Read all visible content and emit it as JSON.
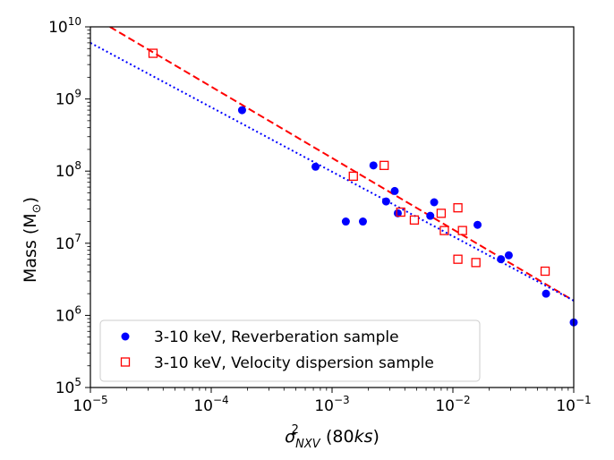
{
  "chart_data": {
    "type": "scatter",
    "xscale": "log",
    "yscale": "log",
    "xlim": [
      1e-05,
      0.1
    ],
    "ylim": [
      100000.0,
      10000000000.0
    ],
    "xlabel": {
      "symbol": "σ",
      "sup": "2",
      "sub": "NXV",
      "rest_open": " (80",
      "rest_italic": "ks",
      "rest_close": ")"
    },
    "ylabel": {
      "text": "Mass (M",
      "symbol": "⊙",
      "close": ")"
    },
    "x_ticks": [
      {
        "value": 1e-05,
        "base": "10",
        "exp": "−5"
      },
      {
        "value": 0.0001,
        "base": "10",
        "exp": "−4"
      },
      {
        "value": 0.001,
        "base": "10",
        "exp": "−3"
      },
      {
        "value": 0.01,
        "base": "10",
        "exp": "−2"
      },
      {
        "value": 0.1,
        "base": "10",
        "exp": "−1"
      }
    ],
    "y_ticks": [
      {
        "value": 100000.0,
        "base": "10",
        "exp": "5"
      },
      {
        "value": 1000000.0,
        "base": "10",
        "exp": "6"
      },
      {
        "value": 10000000.0,
        "base": "10",
        "exp": "7"
      },
      {
        "value": 100000000.0,
        "base": "10",
        "exp": "8"
      },
      {
        "value": 1000000000.0,
        "base": "10",
        "exp": "9"
      },
      {
        "value": 10000000000.0,
        "base": "10",
        "exp": "10"
      }
    ],
    "series": [
      {
        "name": "3-10 keV, Reverberation sample",
        "marker": "filled-circle",
        "color": "#0000ff",
        "points": [
          [
            0.00018,
            700000000.0
          ],
          [
            0.00073,
            115000000.0
          ],
          [
            0.0013,
            20000000.0
          ],
          [
            0.0018,
            20000000.0
          ],
          [
            0.0022,
            120000000.0
          ],
          [
            0.0028,
            38000000.0
          ],
          [
            0.0033,
            53000000.0
          ],
          [
            0.0035,
            26000000.0
          ],
          [
            0.0065,
            24000000.0
          ],
          [
            0.007,
            37000000.0
          ],
          [
            0.016,
            18000000.0
          ],
          [
            0.025,
            6000000.0
          ],
          [
            0.029,
            6800000.0
          ],
          [
            0.059,
            2000000.0
          ],
          [
            0.1,
            800000.0
          ]
        ]
      },
      {
        "name": "3-10 keV, Velocity dispersion sample",
        "marker": "open-square",
        "color": "#ff0000",
        "points": [
          [
            3.3e-05,
            4300000000.0
          ],
          [
            0.0015,
            85000000.0
          ],
          [
            0.0027,
            120000000.0
          ],
          [
            0.0037,
            27000000.0
          ],
          [
            0.0048,
            21000000.0
          ],
          [
            0.008,
            26000000.0
          ],
          [
            0.0085,
            15000000.0
          ],
          [
            0.011,
            31000000.0
          ],
          [
            0.011,
            6000000.0
          ],
          [
            0.012,
            15000000.0
          ],
          [
            0.0155,
            5400000.0
          ],
          [
            0.058,
            4100000.0
          ]
        ]
      }
    ],
    "fit_lines": [
      {
        "name": "velocity-dispersion-fit",
        "color": "#ff0000",
        "style": "dashed",
        "from": [
          1.45e-05,
          10000000000.0
        ],
        "to": [
          0.1,
          1600000.0
        ]
      },
      {
        "name": "reverberation-fit",
        "color": "#0000ff",
        "style": "dotted",
        "from": [
          1e-05,
          6000000000.0
        ],
        "to": [
          0.1,
          1600000.0
        ]
      }
    ],
    "legend_position": "lower-left"
  }
}
